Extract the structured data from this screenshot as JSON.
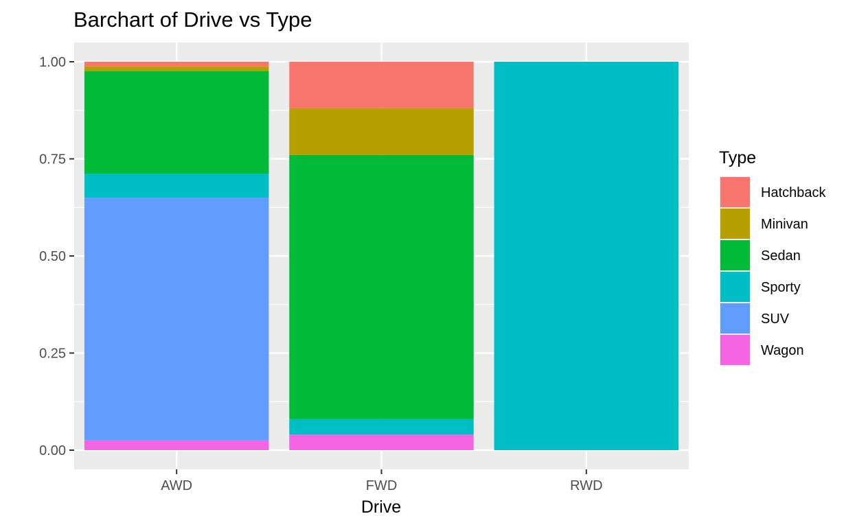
{
  "chart_data": {
    "type": "bar",
    "stacked": true,
    "title": "Barchart of Drive vs Type",
    "xlabel": "Drive",
    "ylabel": "",
    "ylim": [
      0,
      1
    ],
    "yticks": [
      "0.00",
      "0.25",
      "0.50",
      "0.75",
      "1.00"
    ],
    "categories": [
      "AWD",
      "FWD",
      "RWD"
    ],
    "legend_title": "Type",
    "legend_position": "right",
    "grid": true,
    "series": [
      {
        "name": "Hatchback",
        "color": "#F8766D",
        "values": [
          0.012,
          0.12,
          0.0
        ]
      },
      {
        "name": "Minivan",
        "color": "#B79F00",
        "values": [
          0.012,
          0.12,
          0.0
        ]
      },
      {
        "name": "Sedan",
        "color": "#00BA38",
        "values": [
          0.264,
          0.68,
          0.0
        ]
      },
      {
        "name": "Sporty",
        "color": "#00BFC4",
        "values": [
          0.062,
          0.04,
          1.0
        ]
      },
      {
        "name": "SUV",
        "color": "#619CFF",
        "values": [
          0.625,
          0.0,
          0.0
        ]
      },
      {
        "name": "Wagon",
        "color": "#F564E3",
        "values": [
          0.025,
          0.04,
          0.0
        ]
      }
    ]
  }
}
